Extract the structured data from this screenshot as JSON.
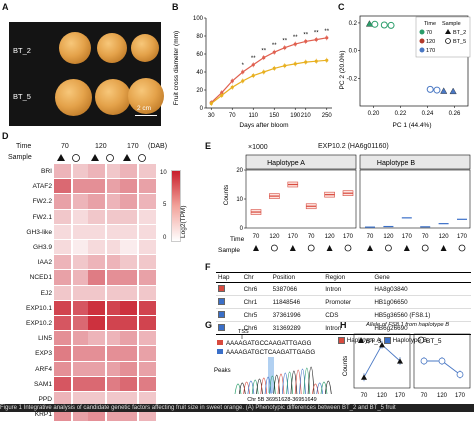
{
  "panels": {
    "a": "A",
    "b": "B",
    "c": "C",
    "d": "D",
    "e": "E",
    "f": "F",
    "g": "G",
    "h": "H"
  },
  "photo": {
    "label_top": "BT_2",
    "label_bottom": "BT_5",
    "scale": "2 cm"
  },
  "panel_b": {
    "ylabel": "Fruit cross diameter (mm)",
    "xlabel": "Days after bloom",
    "sig_marks": [
      "*",
      "**",
      "**",
      "**",
      "**",
      "**",
      "**",
      "**",
      "**"
    ]
  },
  "panel_c": {
    "xlabel": "PC 1 (44.4%)",
    "ylabel": "PC 2 (20.0%)",
    "legend_time_title": "Time",
    "legend_sample_title": "Sample",
    "legend_times": [
      "70",
      "120",
      "170"
    ],
    "legend_samples": [
      "BT_2",
      "BT_5"
    ]
  },
  "panel_d": {
    "time_label": "Time",
    "sample_label": "Sample",
    "dab": "(DAB)",
    "times": [
      "70",
      "120",
      "170"
    ],
    "legend_title": "Log2(TPM)",
    "legend_ticks": [
      "10",
      "5",
      "0"
    ],
    "genes": [
      "BRI",
      "ATAF2",
      "FW2.2",
      "FW2.1",
      "GH3-like",
      "GH3.9",
      "IAA2",
      "NCED1",
      "EJ2",
      "EXP10.1",
      "EXP10.2",
      "LIN5",
      "EXP3",
      "ARF4",
      "SAM1",
      "PPD",
      "KRP1"
    ]
  },
  "panel_e": {
    "title": "EXP10.2 (HA6g01160)",
    "multiplier": "×1000",
    "hapA": "Haplotype A",
    "hapB": "Haplotype B",
    "ylabel": "Counts",
    "yticks": [
      "20",
      "10",
      "0"
    ],
    "time_label": "Time",
    "sample_label": "Sample",
    "times": [
      "70",
      "120",
      "170",
      "70",
      "120",
      "170"
    ]
  },
  "panel_f": {
    "headers": [
      "Hap",
      "Chr",
      "Position",
      "Region",
      "Gene"
    ],
    "rows": [
      {
        "chr": "Chr6",
        "position": "5387066",
        "region": "Intron",
        "gene": "HA8g03840"
      },
      {
        "chr": "Chr1",
        "position": "11848546",
        "region": "Promoter",
        "gene": "HB1g06650"
      },
      {
        "chr": "Chr5",
        "position": "37361996",
        "region": "CDS",
        "gene": "HB5g36560 (FS8.1)"
      },
      {
        "chr": "Chr6",
        "position": "31369289",
        "region": "Intron",
        "gene": "HB6g26690"
      }
    ],
    "legend": [
      "Haplotype A",
      "Haplotype B"
    ]
  },
  "panel_g": {
    "tss": "TSS",
    "seq1": "AAAAGATGCCAAGATTGAGG",
    "seq2": "AAAAGATGCTCAAGATTGAGG",
    "peaks": "Peaks",
    "caption": "Chr 5B  36951628-36951649"
  },
  "panel_h": {
    "title": "Allele of FS8.1 from haplotype B",
    "left_label": "BT_3",
    "right_label": "BT_5",
    "ylabel": "Counts",
    "xticks_left": [
      "70",
      "120",
      "170"
    ],
    "xticks_right": [
      "70",
      "120",
      "170"
    ]
  },
  "caption": "Figure 1  Integrative analysis of candidate genetic factors affecting fruit size in sweet orange. (A) Phenotypic differences between BT_2 and BT_5 fruit",
  "chart_data": [
    {
      "type": "line",
      "panel": "B",
      "xlabel": "Days after bloom",
      "ylabel": "Fruit cross diameter (mm)",
      "x": [
        30,
        50,
        70,
        90,
        110,
        130,
        150,
        170,
        190,
        210,
        230,
        250
      ],
      "xticks": [
        30,
        70,
        110,
        150,
        190,
        210,
        250
      ],
      "ylim": [
        0,
        100
      ],
      "yticks": [
        0,
        20,
        40,
        60,
        80,
        100
      ],
      "series": [
        {
          "color": "#e06050",
          "values": [
            6,
            17,
            30,
            40,
            48,
            56,
            62,
            67,
            71,
            74,
            76,
            78
          ]
        },
        {
          "color": "#e8b020",
          "values": [
            5,
            14,
            23,
            30,
            36,
            40,
            44,
            47,
            49,
            51,
            52,
            53
          ]
        }
      ]
    },
    {
      "type": "scatter",
      "panel": "C",
      "xlabel": "PC 1 (44.4%)",
      "ylabel": "PC 2 (20.0%)",
      "xlim": [
        0.19,
        0.27
      ],
      "ylim": [
        -0.4,
        0.25
      ],
      "xticks": [
        0.2,
        0.22,
        0.24,
        0.26
      ],
      "yticks": [
        -0.2,
        0,
        0.2
      ],
      "points": [
        {
          "x": 0.197,
          "y": 0.195,
          "time": "70",
          "sample": "BT_2"
        },
        {
          "x": 0.201,
          "y": 0.19,
          "time": "70",
          "sample": "BT_5"
        },
        {
          "x": 0.208,
          "y": 0.185,
          "time": "70",
          "sample": "BT_5"
        },
        {
          "x": 0.213,
          "y": 0.182,
          "time": "70",
          "sample": "BT_5"
        },
        {
          "x": 0.241,
          "y": 0.012,
          "time": "120",
          "sample": "BT_5"
        },
        {
          "x": 0.247,
          "y": 0.006,
          "time": "120",
          "sample": "BT_5"
        },
        {
          "x": 0.256,
          "y": 0.004,
          "time": "120",
          "sample": "BT_2"
        },
        {
          "x": 0.242,
          "y": -0.28,
          "time": "170",
          "sample": "BT_5"
        },
        {
          "x": 0.247,
          "y": -0.285,
          "time": "170",
          "sample": "BT_5"
        },
        {
          "x": 0.252,
          "y": -0.29,
          "time": "170",
          "sample": "BT_2"
        },
        {
          "x": 0.259,
          "y": -0.292,
          "time": "170",
          "sample": "BT_2"
        }
      ]
    },
    {
      "type": "heatmap",
      "panel": "D",
      "colorbar_range": [
        0,
        12
      ],
      "rows": [
        "BRI",
        "ATAF2",
        "FW2.2",
        "FW2.1",
        "GH3-like",
        "GH3.9",
        "IAA2",
        "NCED1",
        "EJ2",
        "EXP10.1",
        "EXP10.2",
        "LIN5",
        "EXP3",
        "ARF4",
        "SAM1",
        "PPD",
        "KRP1"
      ],
      "columns": [
        "70-BT_2",
        "70-BT_5",
        "120-BT_2",
        "120-BT_5",
        "170-BT_2",
        "170-BT_5"
      ],
      "values": [
        [
          4,
          3,
          4,
          3,
          4,
          3
        ],
        [
          8,
          6,
          6,
          5,
          6,
          5
        ],
        [
          5,
          4,
          5,
          4,
          5,
          4
        ],
        [
          3,
          2,
          3,
          3,
          3,
          2
        ],
        [
          2,
          2,
          2,
          2,
          2,
          2
        ],
        [
          2,
          1,
          2,
          2,
          1,
          2
        ],
        [
          4,
          3,
          4,
          4,
          3,
          3
        ],
        [
          5,
          4,
          7,
          6,
          6,
          5
        ],
        [
          3,
          3,
          3,
          3,
          3,
          3
        ],
        [
          10,
          9,
          11,
          10,
          11,
          10
        ],
        [
          9,
          8,
          11,
          10,
          10,
          10
        ],
        [
          6,
          5,
          4,
          4,
          5,
          4
        ],
        [
          7,
          6,
          6,
          6,
          6,
          5
        ],
        [
          6,
          5,
          5,
          5,
          6,
          5
        ],
        [
          9,
          8,
          8,
          7,
          8,
          7
        ],
        [
          4,
          3,
          3,
          3,
          3,
          3
        ],
        [
          6,
          5,
          6,
          5,
          5,
          4
        ]
      ]
    },
    {
      "type": "box",
      "panel": "E",
      "ylabel": "Counts",
      "ylim": [
        0,
        20
      ],
      "groups": [
        {
          "hap": "A",
          "time": "70",
          "sample": "BT_2",
          "median": 5.5
        },
        {
          "hap": "A",
          "time": "70",
          "sample": "BT_5",
          "median": 11
        },
        {
          "hap": "A",
          "time": "120",
          "sample": "BT_2",
          "median": 15
        },
        {
          "hap": "A",
          "time": "120",
          "sample": "BT_5",
          "median": 7.5
        },
        {
          "hap": "A",
          "time": "170",
          "sample": "BT_2",
          "median": 11.5
        },
        {
          "hap": "A",
          "time": "170",
          "sample": "BT_5",
          "median": 12
        },
        {
          "hap": "B",
          "time": "70",
          "sample": "BT_2",
          "median": 0.3
        },
        {
          "hap": "B",
          "time": "70",
          "sample": "BT_5",
          "median": 0.5
        },
        {
          "hap": "B",
          "time": "120",
          "sample": "BT_2",
          "median": 3.5
        },
        {
          "hap": "B",
          "time": "120",
          "sample": "BT_5",
          "median": 0.4
        },
        {
          "hap": "B",
          "time": "170",
          "sample": "BT_2",
          "median": 1.5
        },
        {
          "hap": "B",
          "time": "170",
          "sample": "BT_5",
          "median": 3
        }
      ]
    },
    {
      "type": "line",
      "panel": "H",
      "ylabel": "Counts",
      "series": [
        {
          "name": "BT_3",
          "x": [
            "70",
            "120",
            "170"
          ],
          "values": [
            2,
            8,
            5
          ]
        },
        {
          "name": "BT_5",
          "x": [
            "70",
            "120",
            "170"
          ],
          "values": [
            5,
            5,
            2.5
          ]
        }
      ]
    }
  ]
}
